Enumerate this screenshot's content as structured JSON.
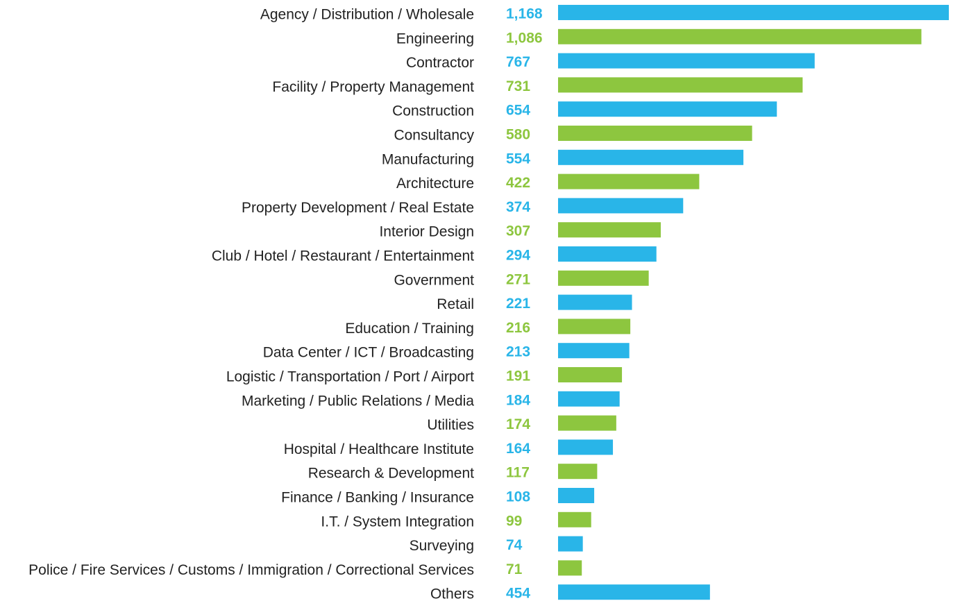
{
  "chart_data": {
    "type": "barh",
    "categories": [
      "Agency / Distribution / Wholesale",
      "Engineering",
      "Contractor",
      "Facility / Property Management",
      "Construction",
      "Consultancy",
      "Manufacturing",
      "Architecture",
      "Property Development / Real Estate",
      "Interior Design",
      "Club / Hotel / Restaurant / Entertainment",
      "Government",
      "Retail",
      "Education / Training",
      "Data Center / ICT / Broadcasting",
      "Logistic / Transportation / Port / Airport",
      "Marketing / Public Relations / Media",
      "Utilities",
      "Hospital / Healthcare Institute",
      "Research & Development",
      "Finance / Banking / Insurance",
      "I.T. / System Integration",
      "Surveying",
      "Police / Fire Services / Customs / Immigration / Correctional Services",
      "Others"
    ],
    "values": [
      1168,
      1086,
      767,
      731,
      654,
      580,
      554,
      422,
      374,
      307,
      294,
      271,
      221,
      216,
      213,
      191,
      184,
      174,
      164,
      117,
      108,
      99,
      74,
      71,
      454
    ],
    "value_labels": [
      "1,168",
      "1,086",
      "767",
      "731",
      "654",
      "580",
      "554",
      "422",
      "374",
      "307",
      "294",
      "271",
      "221",
      "216",
      "213",
      "191",
      "184",
      "174",
      "164",
      "117",
      "108",
      "99",
      "74",
      "71",
      "454"
    ],
    "colors": [
      "#29b5e8",
      "#8dc63f"
    ],
    "xlim": [
      0,
      1168
    ]
  }
}
